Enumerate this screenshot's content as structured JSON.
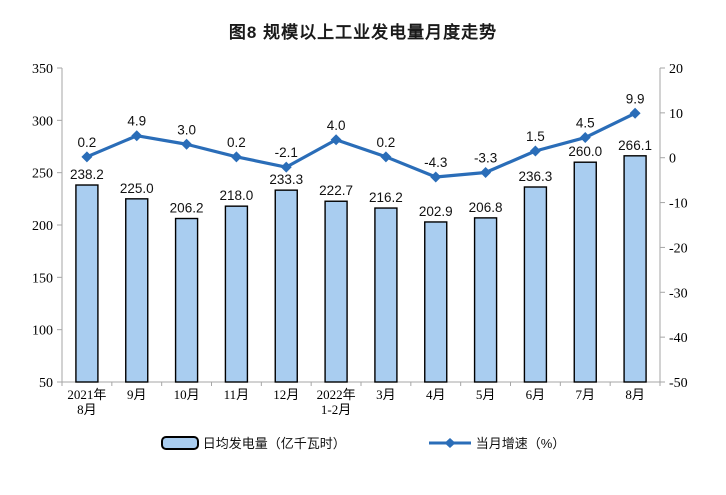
{
  "title": "图8 规模以上工业发电量月度走势",
  "colors": {
    "bar_fill": "#A9CDF0",
    "bar_border": "#000000",
    "line": "#2A6DB8",
    "axis": "#A6A6A6",
    "label_text": "#111111"
  },
  "chart_data": {
    "type": "bar+line",
    "title": "图8 规模以上工业发电量月度走势",
    "categories": [
      "2021年\n8月",
      "9月",
      "10月",
      "11月",
      "12月",
      "2022年\n1-2月",
      "3月",
      "4月",
      "5月",
      "6月",
      "7月",
      "8月"
    ],
    "series": [
      {
        "name": "日均发电量（亿千瓦时）",
        "type": "bar",
        "axis": "left",
        "values": [
          238.2,
          225.0,
          206.2,
          218.0,
          233.3,
          222.7,
          216.2,
          202.9,
          206.8,
          236.3,
          260.0,
          266.1
        ]
      },
      {
        "name": "当月增速（%）",
        "type": "line",
        "axis": "right",
        "values": [
          0.2,
          4.9,
          3.0,
          0.2,
          -2.1,
          4.0,
          0.2,
          -4.3,
          -3.3,
          1.5,
          4.5,
          9.9
        ]
      }
    ],
    "left_axis": {
      "min": 50,
      "max": 350,
      "ticks": [
        350,
        300,
        250,
        200,
        150,
        100,
        50
      ]
    },
    "right_axis": {
      "min": -50,
      "max": 20,
      "ticks": [
        20,
        10,
        0,
        -10,
        -20,
        -30,
        -40,
        -50
      ]
    },
    "grid": false,
    "legend_position": "bottom",
    "data_labels": true
  }
}
